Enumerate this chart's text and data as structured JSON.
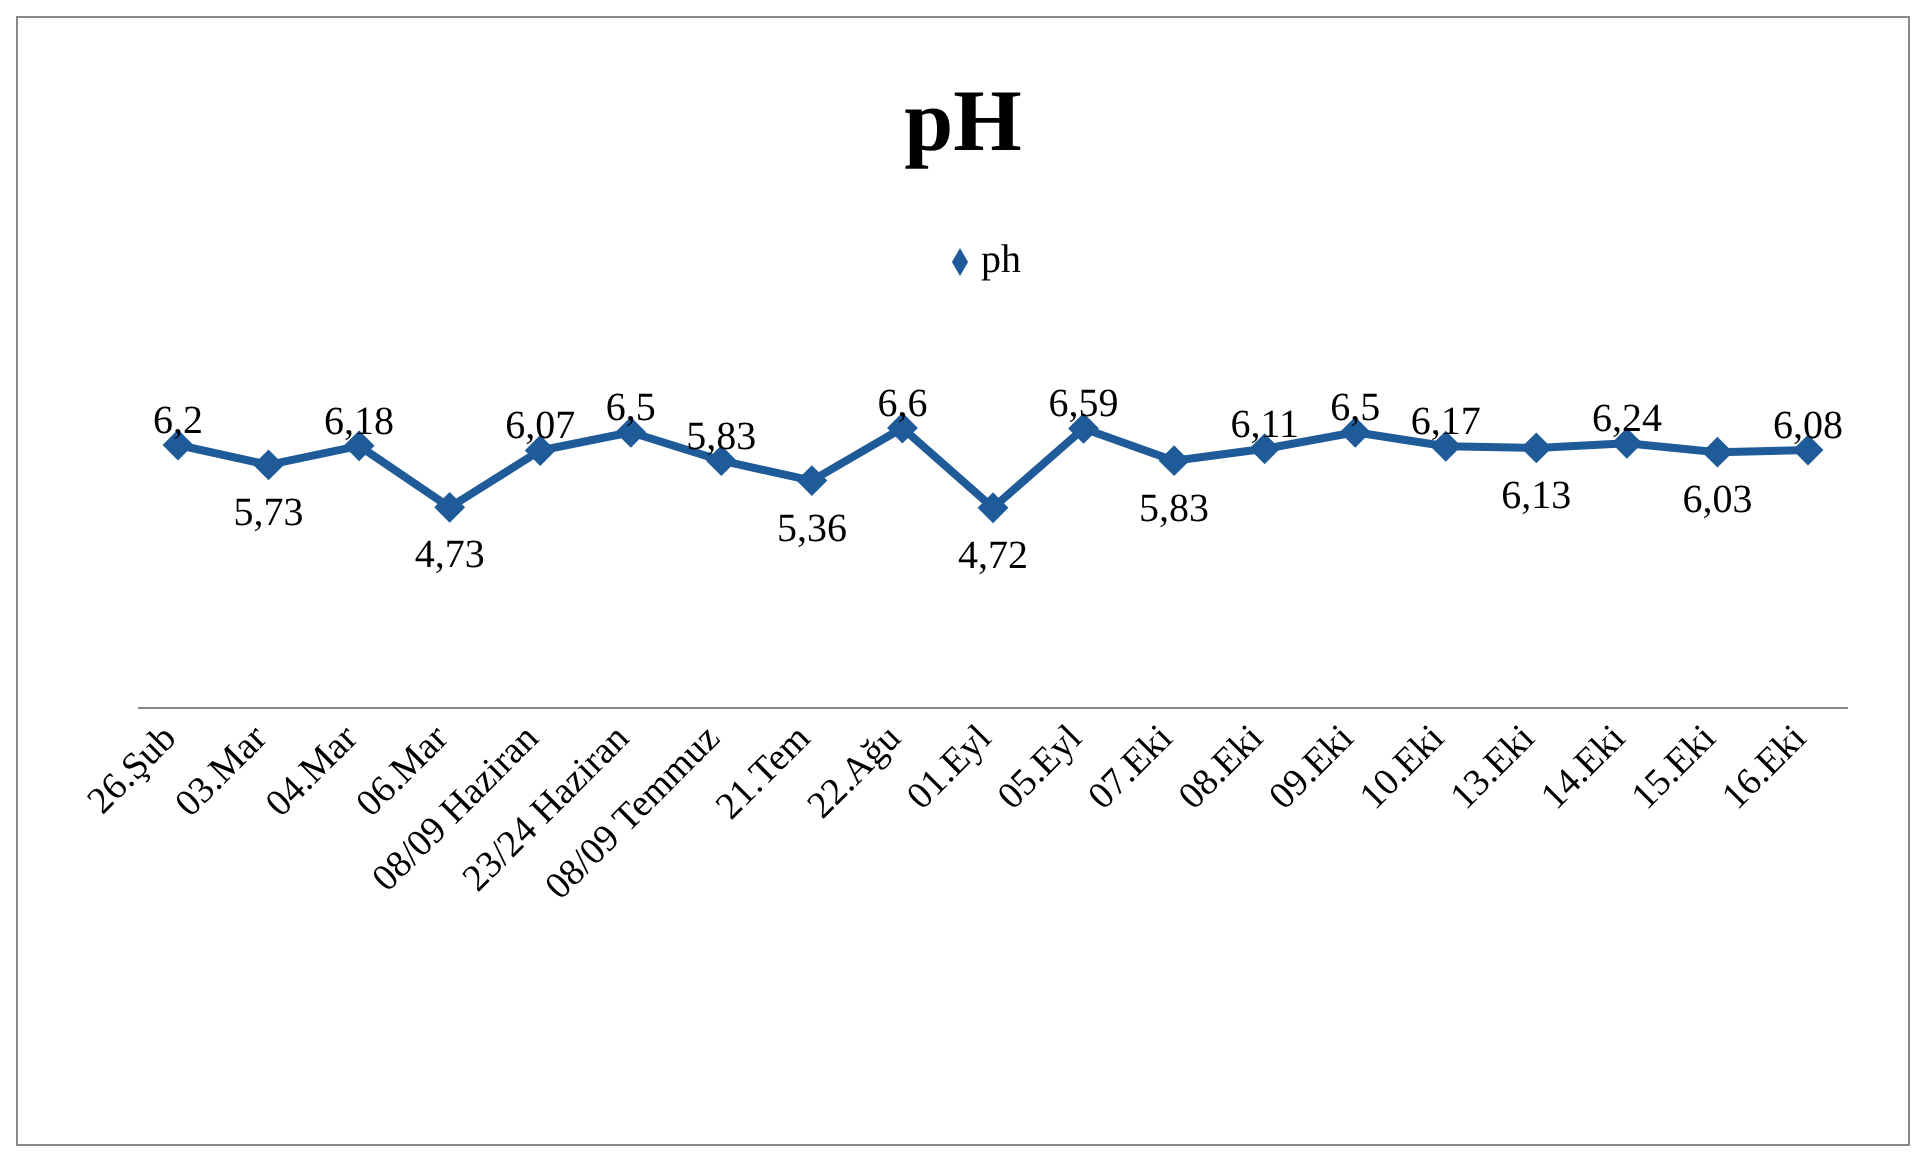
{
  "chart_data": {
    "type": "line",
    "title": "pH",
    "categories": [
      "26.Şub",
      "03.Mar",
      "04.Mar",
      "06.Mar",
      "08/09 Haziran",
      "23/24 Haziran",
      "08/09 Temmuz",
      "21.Tem",
      "22.Ağu",
      "01.Eyl",
      "05.Eyl",
      "07.Eki",
      "08.Eki",
      "09.Eki",
      "10.Eki",
      "13.Eki",
      "14.Eki",
      "15.Eki",
      "16.Eki"
    ],
    "series": [
      {
        "name": "ph",
        "color": "#1f5b99",
        "values": [
          6.2,
          5.73,
          6.18,
          4.73,
          6.07,
          6.5,
          5.83,
          5.36,
          6.6,
          4.72,
          6.59,
          5.83,
          6.11,
          6.5,
          6.17,
          6.13,
          6.24,
          6.03,
          6.08
        ],
        "value_labels": [
          "6,2",
          "5,73",
          "6,18",
          "4,73",
          "6,07",
          "6,5",
          "5,83",
          "5,36",
          "6,6",
          "4,72",
          "6,59",
          "5,83",
          "6,11",
          "6,5",
          "6,17",
          "6,13",
          "6,24",
          "6,03",
          "6,08"
        ]
      }
    ],
    "tick_labels": "x",
    "legend": "top",
    "marker": "diamond",
    "line_style": "solid",
    "grid": false
  }
}
